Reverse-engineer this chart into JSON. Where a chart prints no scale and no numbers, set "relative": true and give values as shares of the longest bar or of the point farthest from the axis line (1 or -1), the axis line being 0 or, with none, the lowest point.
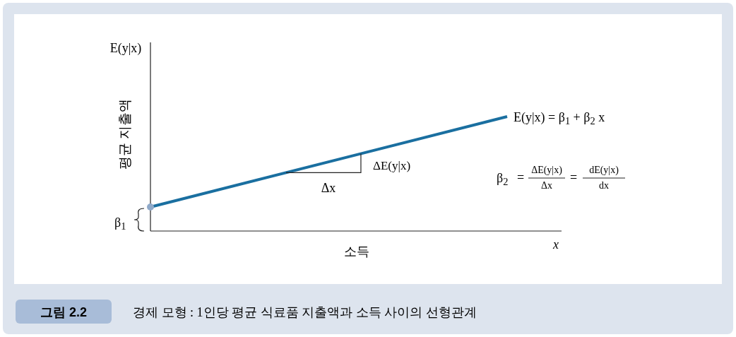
{
  "chart_data": {
    "type": "line",
    "relative": true,
    "title": "그림 2.2",
    "subtitle": "경제 모형 : 1인당 평균 식료품 지출액과 소득 사이의 선형관계",
    "xlabel": "x",
    "ylabel": "평균 지출액",
    "categories": [
      null,
      null
    ],
    "series": [
      {
        "color": "#1a6fa0",
        "values": [
          0.21,
          1
        ]
      }
    ],
    "annotations": [
      "E(y|x) = β$_{1}$ + β$_{2}$ x",
      "E(y|x)",
      "소득",
      "β$_{1}$",
      "ΔE(y|x)",
      "Δx",
      "β$_{2}$",
      "=",
      "ΔE(y|x)",
      "Δx",
      "=",
      "dE(y|x)",
      "dx"
    ]
  }
}
